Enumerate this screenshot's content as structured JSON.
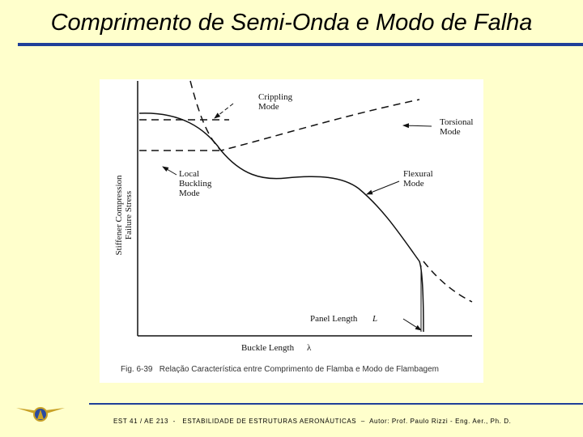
{
  "header": {
    "title": "Comprimento de Semi-Onda e Modo de Falha"
  },
  "figure": {
    "labels": {
      "crippling": [
        "Crippling",
        "Mode"
      ],
      "torsional": [
        "Torsional",
        "Mode"
      ],
      "local": [
        "Local",
        "Buckling",
        "Mode"
      ],
      "flexural": [
        "Flexural",
        "Mode"
      ],
      "y_axis": [
        "Stiffener Compression",
        "Failure Stress"
      ],
      "panel_length": "Panel Length",
      "panel_symbol": "L",
      "x_axis": "Buckle Length",
      "x_symbol": "λ"
    },
    "caption": "Fig. 6-39   Relação Característica entre Comprimento de Flamba e Modo de Flambagem"
  },
  "footer": {
    "text": "EST 41 / AE 213  -   ESTABILIDADE DE ESTRUTURAS AERONÁUTICAS  –  Autor: Prof. Paulo Rizzi - Eng. Aer., Ph. D."
  }
}
